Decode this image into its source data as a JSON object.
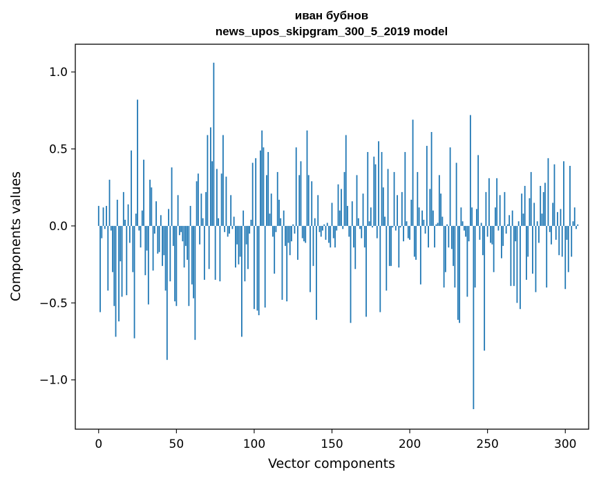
{
  "chart_data": {
    "type": "bar",
    "title": "иван бубнов",
    "subtitle": "news_upos_skipgram_300_5_2019 model",
    "xlabel": "Vector components",
    "ylabel": "Components values",
    "xlim": [
      -15,
      315
    ],
    "ylim": [
      -1.32,
      1.18
    ],
    "xticks": [
      0,
      50,
      100,
      150,
      200,
      250,
      300
    ],
    "xtick_labels": [
      "0",
      "50",
      "100",
      "150",
      "200",
      "250",
      "300"
    ],
    "yticks": [
      -1.0,
      -0.5,
      0.0,
      0.5,
      1.0
    ],
    "ytick_labels": [
      "−1.0",
      "−0.5",
      "0.0",
      "0.5",
      "1.0"
    ],
    "grid": false,
    "bar_color": "#1f77b4",
    "values": [
      0.13,
      -0.56,
      -0.08,
      0.12,
      -0.02,
      0.13,
      -0.42,
      0.3,
      -0.03,
      -0.3,
      -0.52,
      -0.72,
      0.17,
      -0.62,
      -0.23,
      -0.46,
      0.22,
      0.04,
      -0.45,
      0.14,
      -0.11,
      0.49,
      -0.3,
      -0.73,
      0.08,
      0.82,
      -0.03,
      -0.14,
      0.1,
      0.43,
      -0.32,
      -0.16,
      -0.51,
      0.3,
      0.25,
      -0.29,
      -0.05,
      0.16,
      -0.18,
      -0.17,
      0.07,
      -0.26,
      -0.19,
      -0.42,
      -0.87,
      0.11,
      -0.36,
      0.38,
      -0.13,
      -0.49,
      -0.52,
      0.2,
      -0.06,
      -0.04,
      -0.1,
      -0.27,
      -0.13,
      -0.22,
      -0.52,
      0.13,
      -0.38,
      -0.47,
      -0.74,
      0.29,
      0.34,
      -0.12,
      0.21,
      0.05,
      -0.35,
      0.22,
      0.59,
      -0.28,
      0.64,
      0.42,
      1.06,
      -0.35,
      0.37,
      0.05,
      -0.36,
      0.34,
      0.59,
      -0.04,
      0.32,
      -0.07,
      -0.05,
      0.2,
      -0.02,
      0.06,
      -0.27,
      -0.12,
      -0.25,
      -0.2,
      -0.72,
      0.1,
      -0.36,
      -0.12,
      -0.28,
      -0.05,
      0.04,
      0.41,
      -0.54,
      0.44,
      -0.55,
      -0.58,
      0.49,
      0.62,
      0.51,
      -0.53,
      0.33,
      0.48,
      0.08,
      0.21,
      -0.07,
      -0.31,
      -0.04,
      0.35,
      0.17,
      0.05,
      -0.48,
      0.1,
      -0.13,
      -0.49,
      -0.11,
      -0.19,
      -0.1,
      0.01,
      -0.05,
      0.51,
      -0.22,
      0.33,
      0.42,
      -0.08,
      -0.1,
      -0.11,
      0.62,
      0.33,
      -0.43,
      0.29,
      -0.26,
      0.05,
      -0.61,
      0.2,
      -0.04,
      -0.07,
      -0.03,
      0.01,
      -0.09,
      0.02,
      -0.11,
      -0.14,
      0.15,
      -0.08,
      -0.14,
      -0.03,
      0.27,
      0.1,
      0.24,
      -0.02,
      0.35,
      0.59,
      0.13,
      -0.07,
      -0.63,
      0.16,
      -0.14,
      -0.28,
      0.33,
      0.05,
      -0.02,
      -0.08,
      0.21,
      -0.14,
      -0.59,
      0.48,
      0.03,
      0.12,
      -0.01,
      0.45,
      0.4,
      -0.08,
      0.55,
      -0.56,
      0.48,
      0.25,
      0.06,
      -0.42,
      0.37,
      -0.26,
      -0.26,
      -0.01,
      0.35,
      -0.03,
      0.2,
      -0.27,
      -0.01,
      0.22,
      -0.1,
      0.48,
      0.03,
      -0.08,
      -0.09,
      0.17,
      0.69,
      -0.2,
      -0.22,
      0.35,
      0.12,
      -0.38,
      0.1,
      0.04,
      -0.05,
      0.52,
      -0.14,
      0.24,
      0.61,
      0.1,
      -0.14,
      0.01,
      0.02,
      0.33,
      0.21,
      0.06,
      -0.4,
      -0.3,
      0.01,
      -0.14,
      0.51,
      -0.15,
      -0.26,
      -0.4,
      0.41,
      -0.61,
      -0.63,
      0.12,
      0.03,
      -0.03,
      -0.07,
      -0.46,
      -0.1,
      0.72,
      0.12,
      -1.19,
      -0.4,
      0.11,
      0.46,
      -0.09,
      0.02,
      -0.19,
      -0.81,
      0.22,
      -0.07,
      0.31,
      -0.11,
      -0.12,
      -0.3,
      0.12,
      0.31,
      -0.03,
      0.2,
      -0.21,
      -0.13,
      0.22,
      -0.05,
      0.01,
      0.07,
      -0.39,
      0.1,
      -0.39,
      -0.1,
      -0.5,
      0.03,
      -0.54,
      0.21,
      0.08,
      0.26,
      -0.35,
      -0.2,
      0.18,
      0.35,
      -0.31,
      0.15,
      -0.43,
      0.03,
      -0.11,
      0.26,
      0.08,
      0.22,
      0.28,
      -0.4,
      0.44,
      -0.04,
      -0.12,
      0.15,
      0.4,
      -0.09,
      0.09,
      -0.19,
      0.11,
      -0.2,
      0.42,
      -0.41,
      -0.09,
      -0.3,
      0.39,
      -0.2,
      0.03,
      0.12,
      -0.02,
      0.01
    ]
  }
}
